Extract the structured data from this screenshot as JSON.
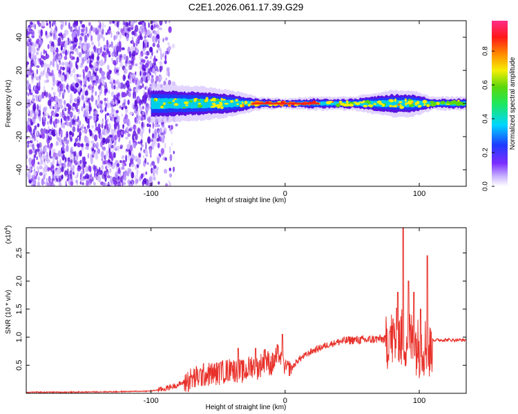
{
  "title": "C2E1.2026.061.17.39.G29",
  "chart_data": [
    {
      "id": "spectrogram",
      "type": "heatmap",
      "xlabel": "Height of straight line (km)",
      "ylabel": "Frequency (Hz)",
      "xlim": [
        -193,
        135
      ],
      "ylim": [
        -50,
        50
      ],
      "xticks": [
        -100,
        0,
        100
      ],
      "yticks": [
        -40,
        -20,
        0,
        20,
        40
      ],
      "noise_region": {
        "x_from": -193,
        "x_to": -90,
        "freq_from": -50,
        "freq_to": 50
      },
      "signal_band": [
        {
          "x": -100,
          "half_width_hz": 6,
          "peak_amplitude": 0.5
        },
        {
          "x": -60,
          "half_width_hz": 5,
          "peak_amplitude": 0.55
        },
        {
          "x": -40,
          "half_width_hz": 4,
          "peak_amplitude": 0.6
        },
        {
          "x": -20,
          "half_width_hz": 2,
          "peak_amplitude": 0.8
        },
        {
          "x": 0,
          "half_width_hz": 1.5,
          "peak_amplitude": 0.95
        },
        {
          "x": 20,
          "half_width_hz": 2,
          "peak_amplitude": 0.9
        },
        {
          "x": 50,
          "half_width_hz": 2,
          "peak_amplitude": 0.5
        },
        {
          "x": 80,
          "half_width_hz": 4,
          "peak_amplitude": 0.6
        },
        {
          "x": 95,
          "half_width_hz": 4,
          "peak_amplitude": 0.6
        },
        {
          "x": 110,
          "half_width_hz": 2,
          "peak_amplitude": 0.45
        },
        {
          "x": 135,
          "half_width_hz": 2,
          "peak_amplitude": 0.45
        }
      ],
      "colorbar": {
        "label": "Normalized spectral amplitude",
        "range": [
          0,
          0.98
        ],
        "ticks": [
          0.0,
          0.2,
          0.4,
          0.6,
          0.8
        ],
        "tick_labels": [
          "0.0",
          "0.2",
          "0.4",
          "0.6",
          "0.8"
        ]
      }
    },
    {
      "id": "snr",
      "type": "line",
      "xlabel": "Height of straight line (km)",
      "ylabel": "SNR (10 * v/v)",
      "scale_label": "(x10",
      "scale_exponent": "4",
      "xlim": [
        -193,
        135
      ],
      "ylim": [
        0,
        2.95
      ],
      "xticks": [
        -100,
        0,
        100
      ],
      "yticks": [
        0.5,
        1.0,
        1.5,
        2.0,
        2.5
      ],
      "ytick_labels": [
        "0.5",
        "1.0",
        "1.5",
        "2.0",
        "2.5"
      ],
      "series": [
        {
          "name": "SNR",
          "color": "#e8312a",
          "x": [
            -193,
            -160,
            -120,
            -100,
            -90,
            -80,
            -70,
            -60,
            -50,
            -40,
            -30,
            -25,
            -20,
            -15,
            -10,
            -5,
            0,
            5,
            10,
            20,
            30,
            40,
            50,
            60,
            70,
            80,
            85,
            90,
            95,
            100,
            105,
            108,
            110,
            120,
            135
          ],
          "y": [
            0.02,
            0.02,
            0.03,
            0.04,
            0.08,
            0.15,
            0.25,
            0.33,
            0.36,
            0.42,
            0.38,
            0.5,
            0.45,
            0.6,
            0.5,
            0.7,
            0.45,
            0.45,
            0.6,
            0.75,
            0.85,
            0.92,
            0.95,
            0.95,
            0.97,
            0.95,
            1.0,
            0.95,
            0.95,
            0.8,
            0.85,
            0.7,
            0.95,
            0.95,
            0.95
          ],
          "spikes": [
            {
              "x": -48,
              "y": 0.55
            },
            {
              "x": -40,
              "y": 0.55
            },
            {
              "x": -35,
              "y": 0.8
            },
            {
              "x": -22,
              "y": 0.8
            },
            {
              "x": -15,
              "y": 0.78
            },
            {
              "x": -2,
              "y": 1.05
            },
            {
              "x": 78,
              "y": 1.1
            },
            {
              "x": 84,
              "y": 1.8
            },
            {
              "x": 88,
              "y": 2.95
            },
            {
              "x": 92,
              "y": 2.0
            },
            {
              "x": 96,
              "y": 1.8
            },
            {
              "x": 101,
              "y": 1.5
            },
            {
              "x": 106,
              "y": 2.45
            }
          ]
        }
      ]
    }
  ]
}
